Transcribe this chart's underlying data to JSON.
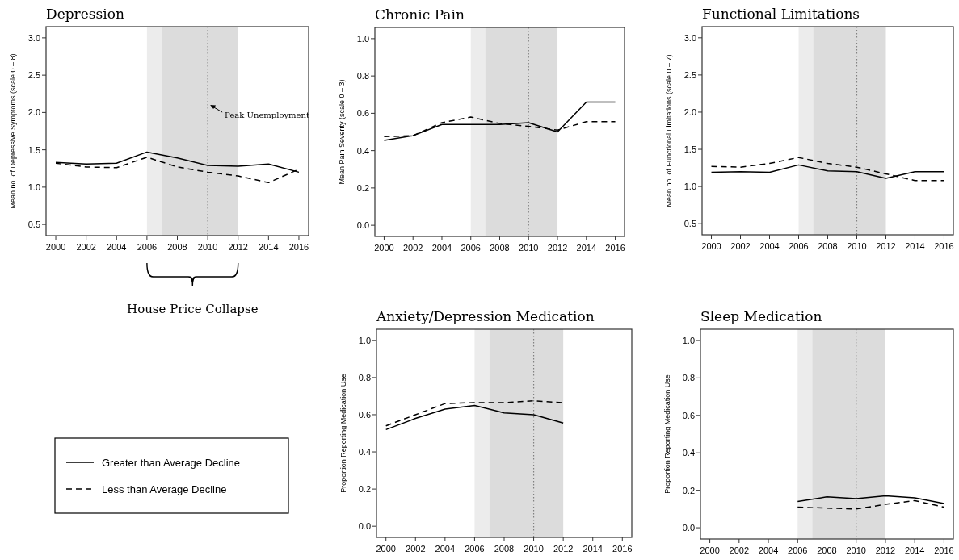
{
  "chart_data": [
    {
      "type": "line",
      "title": "Depression",
      "ylabel": "Mean no. of Depressive Symptoms (scale 0 – 8)",
      "x": [
        2000,
        2002,
        2004,
        2006,
        2008,
        2010,
        2012,
        2014,
        2016
      ],
      "xlim": [
        1999.36,
        2016.64
      ],
      "xticks": [
        2000,
        2002,
        2004,
        2006,
        2008,
        2010,
        2012,
        2014,
        2016
      ],
      "ylim": [
        0.35,
        3.15
      ],
      "yticks": [
        {
          "value": 0.5,
          "label": "0.5"
        },
        {
          "value": 1,
          "label": "1.0"
        },
        {
          "value": 1.5,
          "label": "1.5"
        },
        {
          "value": 2,
          "label": "2.0"
        },
        {
          "value": 2.5,
          "label": "2.5"
        },
        {
          "value": 3,
          "label": "3.0"
        }
      ],
      "legend": "bottom left",
      "grid": false,
      "series": [
        {
          "name": "Greater than Average Decline",
          "color": "#000000",
          "line_style": "solid",
          "values": [
            1.33,
            1.31,
            1.32,
            1.47,
            1.39,
            1.29,
            1.28,
            1.31,
            1.2
          ]
        },
        {
          "name": "Less than Average Decline",
          "color": "#000000",
          "line_style": "dashed",
          "values": [
            1.32,
            1.27,
            1.26,
            1.4,
            1.27,
            1.2,
            1.15,
            1.06,
            1.24
          ]
        }
      ],
      "bands": [
        {
          "axis": "x",
          "from": 2006,
          "to": 2007,
          "color": "#ececec"
        },
        {
          "axis": "x",
          "from": 2007,
          "to": 2012,
          "color": "#dcdcdc"
        }
      ],
      "ref_lines": [
        {
          "axis": "x",
          "value": 2010,
          "color": "#808080",
          "line_style": "dotted",
          "label": "Peak Unemployment"
        }
      ],
      "annotations": [
        "House Price Collapse"
      ]
    },
    {
      "type": "line",
      "title": "Chronic Pain",
      "ylabel": "Mean Pain Severity (scale 0 – 3)",
      "x": [
        2000,
        2002,
        2004,
        2006,
        2008,
        2010,
        2012,
        2014,
        2016
      ],
      "xlim": [
        1999.36,
        2016.64
      ],
      "xticks": [
        2000,
        2002,
        2004,
        2006,
        2008,
        2010,
        2012,
        2014,
        2016
      ],
      "ylim": [
        -0.06,
        1.06
      ],
      "yticks": [
        {
          "value": 0,
          "label": "0.0"
        },
        {
          "value": 0.2,
          "label": "0.2"
        },
        {
          "value": 0.4,
          "label": "0.4"
        },
        {
          "value": 0.6,
          "label": "0.6"
        },
        {
          "value": 0.8,
          "label": "0.8"
        },
        {
          "value": 1,
          "label": "1.0"
        }
      ],
      "grid": false,
      "series": [
        {
          "color": "#000000",
          "line_style": "solid",
          "values": [
            0.455,
            0.48,
            0.54,
            0.54,
            0.54,
            0.55,
            0.5,
            0.66,
            0.66
          ]
        },
        {
          "color": "#000000",
          "line_style": "dashed",
          "values": [
            0.475,
            0.48,
            0.55,
            0.58,
            0.545,
            0.53,
            0.51,
            0.555,
            0.555
          ]
        }
      ],
      "bands": [
        {
          "axis": "x",
          "from": 2006,
          "to": 2007,
          "color": "#ececec"
        },
        {
          "axis": "x",
          "from": 2007,
          "to": 2012,
          "color": "#dcdcdc"
        }
      ],
      "ref_lines": [
        {
          "axis": "x",
          "value": 2010,
          "color": "#808080",
          "line_style": "dotted"
        }
      ]
    },
    {
      "type": "line",
      "title": "Functional Limitations",
      "ylabel": "Mean no. of Functional Limitations (scale 0 – 7)",
      "x": [
        2000,
        2002,
        2004,
        2006,
        2008,
        2010,
        2012,
        2014,
        2016
      ],
      "xlim": [
        1999.36,
        2016.64
      ],
      "xticks": [
        2000,
        2002,
        2004,
        2006,
        2008,
        2010,
        2012,
        2014,
        2016
      ],
      "ylim": [
        0.35,
        3.15
      ],
      "yticks": [
        {
          "value": 0.5,
          "label": "0.5"
        },
        {
          "value": 1,
          "label": "1.0"
        },
        {
          "value": 1.5,
          "label": "1.5"
        },
        {
          "value": 2,
          "label": "2.0"
        },
        {
          "value": 2.5,
          "label": "2.5"
        },
        {
          "value": 3,
          "label": "3.0"
        }
      ],
      "grid": false,
      "series": [
        {
          "color": "#000000",
          "line_style": "solid",
          "values": [
            1.19,
            1.2,
            1.19,
            1.29,
            1.21,
            1.2,
            1.11,
            1.2,
            1.2
          ]
        },
        {
          "color": "#000000",
          "line_style": "dashed",
          "values": [
            1.27,
            1.26,
            1.31,
            1.39,
            1.31,
            1.26,
            1.17,
            1.08,
            1.08
          ]
        }
      ],
      "bands": [
        {
          "axis": "x",
          "from": 2006,
          "to": 2007,
          "color": "#ececec"
        },
        {
          "axis": "x",
          "from": 2007,
          "to": 2012,
          "color": "#dcdcdc"
        }
      ],
      "ref_lines": [
        {
          "axis": "x",
          "value": 2010,
          "color": "#808080",
          "line_style": "dotted"
        }
      ]
    },
    {
      "type": "line",
      "title": "Anxiety/Depression Medication",
      "ylabel": "Proportion Reporting Medication Use",
      "x": [
        2000,
        2002,
        2004,
        2006,
        2008,
        2010,
        2012
      ],
      "xlim": [
        1999.36,
        2016.64
      ],
      "xticks": [
        2000,
        2002,
        2004,
        2006,
        2008,
        2010,
        2012,
        2014,
        2016
      ],
      "ylim": [
        -0.06,
        1.06
      ],
      "yticks": [
        {
          "value": 0,
          "label": "0.0"
        },
        {
          "value": 0.2,
          "label": "0.2"
        },
        {
          "value": 0.4,
          "label": "0.4"
        },
        {
          "value": 0.6,
          "label": "0.6"
        },
        {
          "value": 0.8,
          "label": "0.8"
        },
        {
          "value": 1,
          "label": "1.0"
        }
      ],
      "grid": false,
      "series": [
        {
          "color": "#000000",
          "line_style": "solid",
          "values": [
            0.52,
            0.58,
            0.63,
            0.65,
            0.61,
            0.6,
            0.555
          ]
        },
        {
          "color": "#000000",
          "line_style": "dashed",
          "values": [
            0.54,
            0.6,
            0.66,
            0.665,
            0.665,
            0.675,
            0.665
          ]
        }
      ],
      "bands": [
        {
          "axis": "x",
          "from": 2006,
          "to": 2007,
          "color": "#ececec"
        },
        {
          "axis": "x",
          "from": 2007,
          "to": 2012,
          "color": "#dcdcdc"
        }
      ],
      "ref_lines": [
        {
          "axis": "x",
          "value": 2010,
          "color": "#808080",
          "line_style": "dotted"
        }
      ]
    },
    {
      "type": "line",
      "title": "Sleep Medication",
      "ylabel": "Proportion Reporting Medication Use",
      "x": [
        2006,
        2008,
        2010,
        2012,
        2014,
        2016
      ],
      "xlim": [
        1999.36,
        2016.64
      ],
      "xticks": [
        2000,
        2002,
        2004,
        2006,
        2008,
        2010,
        2012,
        2014,
        2016
      ],
      "ylim": [
        -0.06,
        1.06
      ],
      "yticks": [
        {
          "value": 0,
          "label": "0.0"
        },
        {
          "value": 0.2,
          "label": "0.2"
        },
        {
          "value": 0.4,
          "label": "0.4"
        },
        {
          "value": 0.6,
          "label": "0.6"
        },
        {
          "value": 0.8,
          "label": "0.8"
        },
        {
          "value": 1,
          "label": "1.0"
        }
      ],
      "grid": false,
      "series": [
        {
          "color": "#000000",
          "line_style": "solid",
          "values": [
            0.14,
            0.165,
            0.155,
            0.17,
            0.16,
            0.13
          ]
        },
        {
          "color": "#000000",
          "line_style": "dashed",
          "values": [
            0.11,
            0.105,
            0.1,
            0.125,
            0.145,
            0.11
          ]
        }
      ],
      "bands": [
        {
          "axis": "x",
          "from": 2006,
          "to": 2007,
          "color": "#ececec"
        },
        {
          "axis": "x",
          "from": 2007,
          "to": 2012,
          "color": "#dcdcdc"
        }
      ],
      "ref_lines": [
        {
          "axis": "x",
          "value": 2010,
          "color": "#808080",
          "line_style": "dotted"
        }
      ]
    }
  ]
}
